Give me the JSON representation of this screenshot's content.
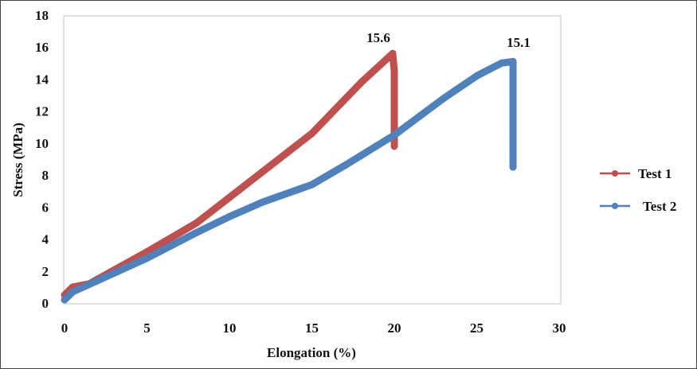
{
  "chart_data": {
    "type": "line",
    "title": "",
    "xlabel": "Elongation (%)",
    "ylabel": "Stress (MPa)",
    "xlim": [
      0,
      30
    ],
    "ylim": [
      0,
      18
    ],
    "xticks": [
      "0",
      "5",
      "10",
      "15",
      "20",
      "25",
      "30"
    ],
    "yticks": [
      "0",
      "2",
      "4",
      "6",
      "8",
      "10",
      "12",
      "14",
      "16",
      "18"
    ],
    "grid": false,
    "legend": "right",
    "series": [
      {
        "name": "Test 1",
        "color": "#c0504d",
        "x": [
          0,
          0.5,
          1.5,
          5,
          8,
          10,
          12,
          15,
          18,
          19.9,
          20,
          20,
          20,
          20,
          20,
          20
        ],
        "y": [
          0.5,
          1.0,
          1.2,
          3.2,
          5.0,
          6.6,
          8.2,
          10.6,
          13.8,
          15.6,
          14.5,
          13.5,
          12.6,
          11.6,
          10.8,
          9.8
        ]
      },
      {
        "name": "Test 2",
        "color": "#4f81bd",
        "x": [
          0,
          0.5,
          2,
          5,
          8,
          10,
          12,
          15,
          17,
          20,
          23,
          25,
          26.5,
          27.2,
          27.2,
          27.2,
          27.2,
          27.2,
          27.2,
          27.2,
          27.2,
          27.2,
          27.2
        ],
        "y": [
          0.2,
          0.7,
          1.4,
          2.8,
          4.4,
          5.4,
          6.3,
          7.4,
          8.6,
          10.5,
          12.8,
          14.2,
          15.0,
          15.1,
          14.5,
          13.8,
          13.4,
          12.5,
          11.8,
          11.2,
          10.4,
          9.8,
          8.5
        ]
      }
    ],
    "annotations": [
      "15.6",
      "15.1"
    ]
  }
}
